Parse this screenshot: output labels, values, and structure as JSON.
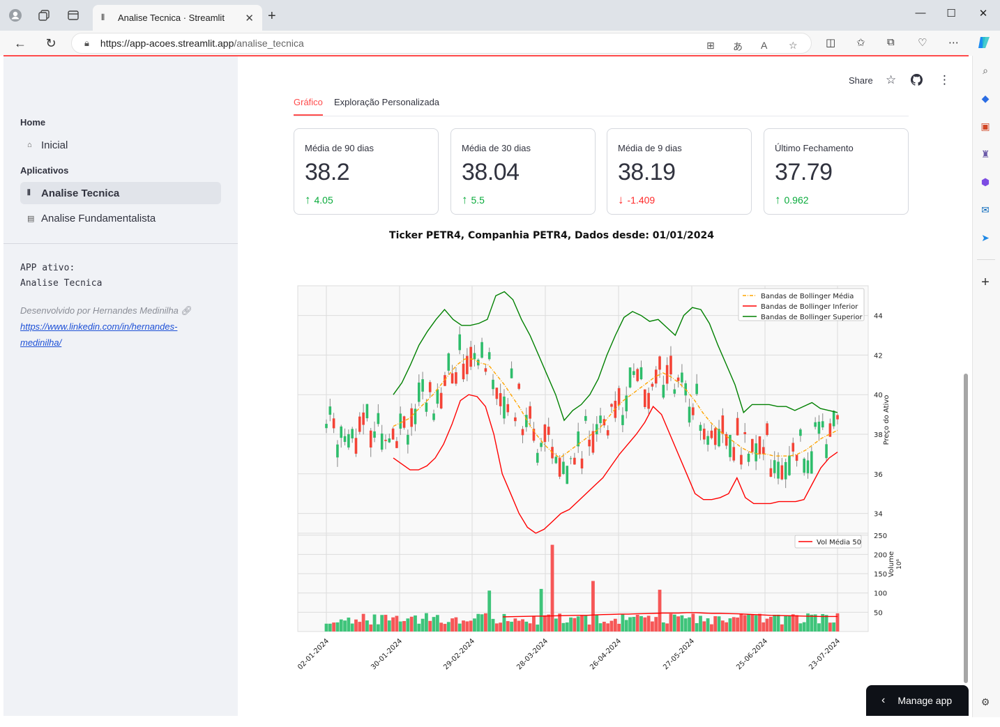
{
  "browser": {
    "tab_title": "Analise Tecnica · Streamlit",
    "url_host": "https://app-acoes.streamlit.app",
    "url_path": "/analise_tecnica"
  },
  "sidebar": {
    "home_section": "Home",
    "home_item": "Inicial",
    "apps_section": "Aplicativos",
    "items": [
      {
        "label": "Analise Tecnica",
        "active": true
      },
      {
        "label": "Analise Fundamentalista",
        "active": false
      }
    ],
    "app_active_label": "APP ativo:",
    "app_active_value": "Analise Tecnica",
    "developer": "Desenvolvido por Hernandes Medinilha",
    "link_line1": "https://www.linkedin.com/in/hernandes-",
    "link_line2": "medinilha/"
  },
  "header": {
    "share": "Share"
  },
  "tabs": [
    {
      "label": "Gráfico",
      "active": true
    },
    {
      "label": "Exploração Personalizada",
      "active": false
    }
  ],
  "metrics": [
    {
      "label": "Média de 90 dias",
      "value": "38.2",
      "delta": "4.05",
      "dir": "up"
    },
    {
      "label": "Média de 30 dias",
      "value": "38.04",
      "delta": "5.5",
      "dir": "up"
    },
    {
      "label": "Média de 9 dias",
      "value": "38.19",
      "delta": "-1.409",
      "dir": "down"
    },
    {
      "label": "Último Fechamento",
      "value": "37.79",
      "delta": "0.962",
      "dir": "up"
    }
  ],
  "chart_title": "Ticker PETR4, Companhia PETR4, Dados desde: 01/01/2024",
  "manage_app": "Manage app",
  "chart_data": {
    "type": "line",
    "title": "Ticker PETR4, Companhia PETR4, Dados desde: 01/01/2024",
    "ylabel_price": "Preço do Ativo",
    "ylabel_volume": "Volume",
    "volume_unit": "10⁶",
    "x_ticks": [
      "02-01-2024",
      "30-01-2024",
      "29-02-2024",
      "28-03-2024",
      "26-04-2024",
      "27-05-2024",
      "25-06-2024",
      "23-07-2024"
    ],
    "price_ylim": [
      33,
      45.5
    ],
    "price_ticks": [
      34,
      36,
      38,
      40,
      42,
      44
    ],
    "volume_ylim": [
      0,
      255
    ],
    "volume_ticks": [
      50,
      100,
      150,
      200,
      250
    ],
    "grid": true,
    "legend_price": "top-right",
    "legend_volume": "top-right",
    "series": [
      {
        "name": "Bandas de Bollinger Média",
        "color": "#ffa500",
        "values": [
          38.4,
          38.6,
          38.8,
          39.2,
          39.6,
          40.0,
          40.5,
          41.0,
          41.5,
          41.8,
          41.8,
          41.6,
          41.5,
          41.0,
          40.5,
          39.9,
          39.3,
          38.6,
          38.0,
          37.5,
          37.1,
          36.8,
          37.1,
          37.4,
          37.7,
          38.0,
          38.3,
          38.8,
          39.3,
          39.7,
          40.0,
          40.3,
          40.6,
          40.9,
          41.1,
          40.9,
          40.6,
          40.2,
          39.7,
          39.1,
          38.6,
          38.2,
          37.9,
          37.6,
          37.3,
          37.1,
          37.0,
          37.0,
          36.9,
          36.9,
          36.9,
          37.0,
          37.2,
          37.5,
          37.8,
          38.0,
          38.2
        ]
      },
      {
        "name": "Bandas de Bollinger Inferior",
        "color": "#ff0000",
        "values": [
          36.8,
          36.5,
          36.2,
          36.2,
          36.4,
          36.8,
          37.5,
          38.5,
          39.7,
          40.0,
          39.9,
          39.4,
          38.0,
          36.0,
          35.0,
          34.0,
          33.3,
          33.0,
          33.2,
          33.6,
          34.0,
          34.2,
          34.6,
          35.0,
          35.4,
          35.8,
          36.4,
          37.0,
          37.5,
          38.0,
          38.6,
          39.4,
          39.0,
          38.0,
          37.0,
          36.0,
          35.0,
          34.7,
          34.7,
          34.8,
          35.0,
          35.8,
          34.8,
          34.5,
          34.5,
          34.5,
          34.6,
          34.6,
          34.6,
          34.7,
          35.5,
          36.3,
          36.8,
          37.1
        ]
      },
      {
        "name": "Bandas de Bollinger Superior",
        "color": "#008000",
        "values": [
          40.0,
          40.6,
          41.5,
          42.5,
          43.2,
          43.8,
          44.3,
          43.8,
          43.5,
          43.5,
          43.6,
          43.8,
          45.0,
          45.2,
          44.8,
          43.8,
          43.0,
          42.0,
          41.0,
          40.0,
          38.7,
          39.2,
          39.5,
          40.0,
          40.8,
          42.0,
          43.0,
          43.9,
          44.2,
          44.0,
          43.7,
          43.8,
          43.4,
          43.0,
          44.0,
          44.4,
          44.3,
          43.6,
          42.5,
          41.5,
          40.5,
          39.1,
          39.5,
          39.5,
          39.5,
          39.4,
          39.4,
          39.2,
          39.4,
          39.6,
          39.3,
          39.2,
          39.1
        ]
      },
      {
        "name": "Vol Média 50",
        "color": "#ff0000",
        "values": [
          38,
          38.5,
          39,
          39.5,
          40,
          40,
          40.5,
          41,
          41.5,
          42,
          42,
          43,
          44,
          44.5,
          45,
          45,
          46,
          46.5,
          47,
          48,
          48,
          48,
          49,
          49,
          48,
          47,
          47,
          46.5,
          46,
          45,
          44,
          43,
          42,
          41.5,
          41,
          40.5,
          40,
          39.5,
          39,
          39,
          39
        ]
      }
    ]
  }
}
